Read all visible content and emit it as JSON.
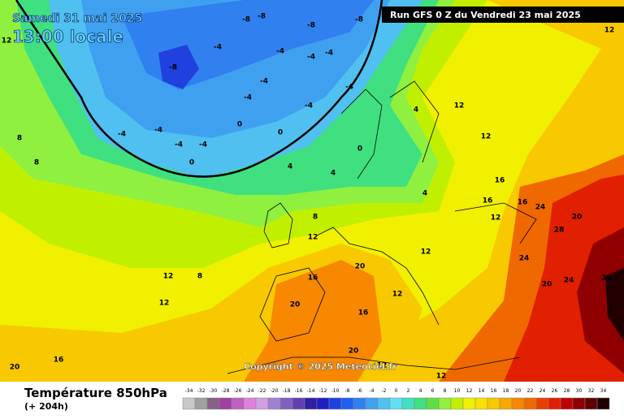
{
  "header": {
    "date": "Samedi 31 mai 2025",
    "time": "13:00 locale",
    "run": "Run GFS 0 Z du Vendredi 23 mai 2025"
  },
  "map": {
    "copyright": "Copyright © 2025 Meteociel.fr",
    "contour_labels": [
      -8,
      -8,
      -8,
      -8,
      -8,
      -4,
      -4,
      -4,
      -4,
      -4,
      -4,
      -4,
      -4,
      -4,
      -4,
      -4,
      -4,
      0,
      0,
      0,
      0,
      4,
      4,
      4,
      4,
      8,
      8,
      8,
      8,
      12,
      12,
      12,
      12,
      12,
      12,
      12,
      12,
      16,
      16,
      16,
      16,
      16,
      16,
      20,
      20,
      20,
      20,
      20,
      20,
      24,
      24,
      24,
      28,
      28,
      12,
      12,
      12,
      12
    ]
  },
  "footer": {
    "title": "Température 850hPa",
    "lead": "(+ 204h)"
  },
  "scale": {
    "values": [
      -34,
      -32,
      -30,
      -28,
      -26,
      -24,
      -22,
      -20,
      -18,
      -16,
      -14,
      -12,
      -10,
      -8,
      -6,
      -4,
      -2,
      0,
      2,
      4,
      6,
      8,
      10,
      12,
      14,
      16,
      18,
      20,
      22,
      24,
      26,
      28,
      30,
      32,
      34
    ],
    "colors": [
      "#c8c8c8",
      "#a0a0a0",
      "#886088",
      "#a040a0",
      "#c060c0",
      "#e080e0",
      "#d0a0e0",
      "#a080d0",
      "#8060c0",
      "#6040b0",
      "#3020a0",
      "#2020c0",
      "#2040e0",
      "#2060f0",
      "#3080f0",
      "#40a0f0",
      "#50c0f0",
      "#60e0f0",
      "#40e0c0",
      "#40e080",
      "#60e040",
      "#90f040",
      "#c0f000",
      "#f0f000",
      "#f8e000",
      "#f8c800",
      "#f8a800",
      "#f88800",
      "#f06800",
      "#e84000",
      "#e02000",
      "#c00000",
      "#900000",
      "#600000",
      "#200000"
    ]
  }
}
